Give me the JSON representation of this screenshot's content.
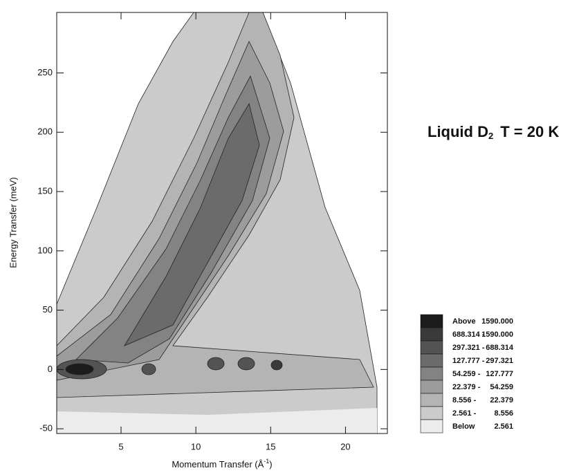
{
  "chart_data": {
    "type": "contour",
    "title": [
      "Liquid D",
      "2",
      "T = 20 K"
    ],
    "xlabel": [
      "Momentum Transfer (Å",
      "-1",
      ")"
    ],
    "ylabel": "Energy Transfer (meV)",
    "xlim": [
      0.7,
      22.8
    ],
    "xticks": [
      5,
      10,
      15,
      20
    ],
    "ylim": [
      -54,
      301
    ],
    "yticks": [
      -50,
      0,
      50,
      100,
      150,
      200,
      250
    ],
    "legend": [
      [
        "Above",
        "1590.000"
      ],
      [
        "688.314 -",
        "1590.000"
      ],
      [
        "297.321 -",
        "688.314"
      ],
      [
        "127.777 -",
        "297.321"
      ],
      [
        "54.259 -",
        "127.777"
      ],
      [
        "22.379 -",
        "54.259"
      ],
      [
        "8.556 -",
        "22.379"
      ],
      [
        "2.561 -",
        "8.556"
      ],
      [
        "Below",
        "2.561"
      ]
    ],
    "colors": [
      "#1c1c1c",
      "#3a3a3a",
      "#535353",
      "#6b6b6b",
      "#838383",
      "#9c9c9c",
      "#b4b4b4",
      "#cbcbcb",
      "#ececec"
    ]
  }
}
